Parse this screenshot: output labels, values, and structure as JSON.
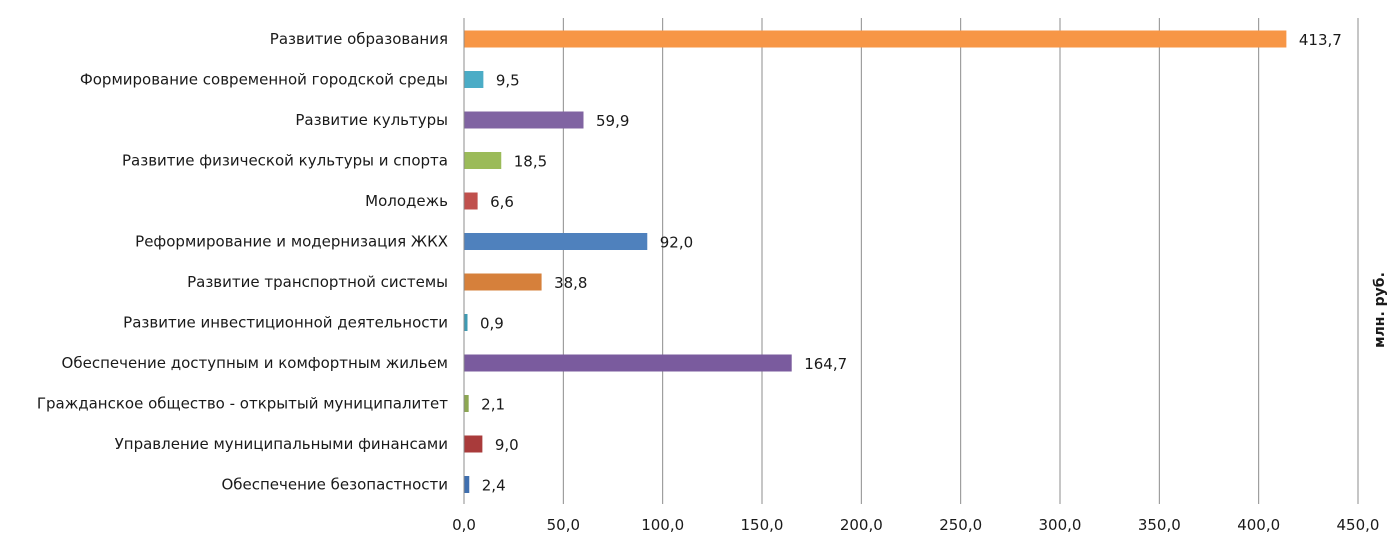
{
  "chart_data": {
    "type": "bar",
    "orientation": "horizontal",
    "categories": [
      "Развитие образования",
      "Формирование современной городской среды",
      "Развитие культуры",
      "Развитие физической культуры и спорта",
      "Молодежь",
      "Реформирование и модернизация ЖКХ",
      "Развитие транспортной системы",
      "Развитие инвестиционной деятельности",
      "Обеспечение доступным и комфортным жильем",
      "Гражданское общество - открытый муниципалитет",
      "Управление муниципальными финансами",
      "Обеспечение безопастности"
    ],
    "values": [
      413.7,
      9.5,
      59.9,
      18.5,
      6.6,
      92.0,
      38.8,
      0.9,
      164.7,
      2.1,
      9.0,
      2.4
    ],
    "value_labels": [
      "413,7",
      "9,5",
      "59,9",
      "18,5",
      "6,6",
      "92,0",
      "38,8",
      "0,9",
      "164,7",
      "2,1",
      "9,0",
      "2,4"
    ],
    "bar_colors": [
      "#F79646",
      "#4BACC6",
      "#8064A2",
      "#9BBB59",
      "#C0504D",
      "#4F81BD",
      "#D6803B",
      "#3E9AB3",
      "#7A5B9E",
      "#8DA752",
      "#A93B3B",
      "#3F6FAF"
    ],
    "xlim": [
      0,
      450
    ],
    "xticks": [
      0,
      50,
      100,
      150,
      200,
      250,
      300,
      350,
      400,
      450
    ],
    "xtick_labels": [
      "0,0",
      "50,0",
      "100,0",
      "150,0",
      "200,0",
      "250,0",
      "300,0",
      "350,0",
      "400,0",
      "450,0"
    ],
    "unit_label": "млн. руб.",
    "grid": "vertical",
    "legend": "none",
    "gridline_color": "#8C8C8C"
  }
}
